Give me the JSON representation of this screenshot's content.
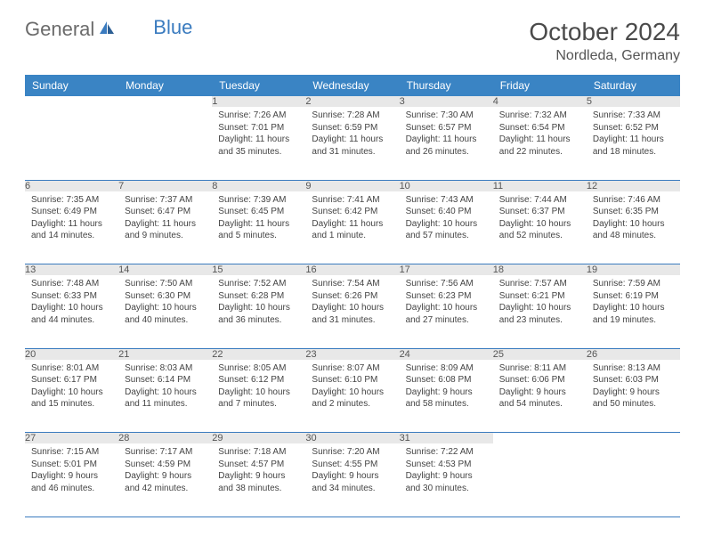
{
  "logo": {
    "text_general": "General",
    "text_blue": "Blue"
  },
  "title": "October 2024",
  "location": "Nordleda, Germany",
  "colors": {
    "header_bg": "#3a84c4",
    "header_text": "#ffffff",
    "daynum_bg": "#e8e8e8",
    "border": "#3a7bbf",
    "logo_gray": "#6b6b6b",
    "logo_blue": "#3a7bbf"
  },
  "day_headers": [
    "Sunday",
    "Monday",
    "Tuesday",
    "Wednesday",
    "Thursday",
    "Friday",
    "Saturday"
  ],
  "weeks": [
    [
      {
        "n": "",
        "sunrise": "",
        "sunset": "",
        "daylight": ""
      },
      {
        "n": "",
        "sunrise": "",
        "sunset": "",
        "daylight": ""
      },
      {
        "n": "1",
        "sunrise": "Sunrise: 7:26 AM",
        "sunset": "Sunset: 7:01 PM",
        "daylight": "Daylight: 11 hours and 35 minutes."
      },
      {
        "n": "2",
        "sunrise": "Sunrise: 7:28 AM",
        "sunset": "Sunset: 6:59 PM",
        "daylight": "Daylight: 11 hours and 31 minutes."
      },
      {
        "n": "3",
        "sunrise": "Sunrise: 7:30 AM",
        "sunset": "Sunset: 6:57 PM",
        "daylight": "Daylight: 11 hours and 26 minutes."
      },
      {
        "n": "4",
        "sunrise": "Sunrise: 7:32 AM",
        "sunset": "Sunset: 6:54 PM",
        "daylight": "Daylight: 11 hours and 22 minutes."
      },
      {
        "n": "5",
        "sunrise": "Sunrise: 7:33 AM",
        "sunset": "Sunset: 6:52 PM",
        "daylight": "Daylight: 11 hours and 18 minutes."
      }
    ],
    [
      {
        "n": "6",
        "sunrise": "Sunrise: 7:35 AM",
        "sunset": "Sunset: 6:49 PM",
        "daylight": "Daylight: 11 hours and 14 minutes."
      },
      {
        "n": "7",
        "sunrise": "Sunrise: 7:37 AM",
        "sunset": "Sunset: 6:47 PM",
        "daylight": "Daylight: 11 hours and 9 minutes."
      },
      {
        "n": "8",
        "sunrise": "Sunrise: 7:39 AM",
        "sunset": "Sunset: 6:45 PM",
        "daylight": "Daylight: 11 hours and 5 minutes."
      },
      {
        "n": "9",
        "sunrise": "Sunrise: 7:41 AM",
        "sunset": "Sunset: 6:42 PM",
        "daylight": "Daylight: 11 hours and 1 minute."
      },
      {
        "n": "10",
        "sunrise": "Sunrise: 7:43 AM",
        "sunset": "Sunset: 6:40 PM",
        "daylight": "Daylight: 10 hours and 57 minutes."
      },
      {
        "n": "11",
        "sunrise": "Sunrise: 7:44 AM",
        "sunset": "Sunset: 6:37 PM",
        "daylight": "Daylight: 10 hours and 52 minutes."
      },
      {
        "n": "12",
        "sunrise": "Sunrise: 7:46 AM",
        "sunset": "Sunset: 6:35 PM",
        "daylight": "Daylight: 10 hours and 48 minutes."
      }
    ],
    [
      {
        "n": "13",
        "sunrise": "Sunrise: 7:48 AM",
        "sunset": "Sunset: 6:33 PM",
        "daylight": "Daylight: 10 hours and 44 minutes."
      },
      {
        "n": "14",
        "sunrise": "Sunrise: 7:50 AM",
        "sunset": "Sunset: 6:30 PM",
        "daylight": "Daylight: 10 hours and 40 minutes."
      },
      {
        "n": "15",
        "sunrise": "Sunrise: 7:52 AM",
        "sunset": "Sunset: 6:28 PM",
        "daylight": "Daylight: 10 hours and 36 minutes."
      },
      {
        "n": "16",
        "sunrise": "Sunrise: 7:54 AM",
        "sunset": "Sunset: 6:26 PM",
        "daylight": "Daylight: 10 hours and 31 minutes."
      },
      {
        "n": "17",
        "sunrise": "Sunrise: 7:56 AM",
        "sunset": "Sunset: 6:23 PM",
        "daylight": "Daylight: 10 hours and 27 minutes."
      },
      {
        "n": "18",
        "sunrise": "Sunrise: 7:57 AM",
        "sunset": "Sunset: 6:21 PM",
        "daylight": "Daylight: 10 hours and 23 minutes."
      },
      {
        "n": "19",
        "sunrise": "Sunrise: 7:59 AM",
        "sunset": "Sunset: 6:19 PM",
        "daylight": "Daylight: 10 hours and 19 minutes."
      }
    ],
    [
      {
        "n": "20",
        "sunrise": "Sunrise: 8:01 AM",
        "sunset": "Sunset: 6:17 PM",
        "daylight": "Daylight: 10 hours and 15 minutes."
      },
      {
        "n": "21",
        "sunrise": "Sunrise: 8:03 AM",
        "sunset": "Sunset: 6:14 PM",
        "daylight": "Daylight: 10 hours and 11 minutes."
      },
      {
        "n": "22",
        "sunrise": "Sunrise: 8:05 AM",
        "sunset": "Sunset: 6:12 PM",
        "daylight": "Daylight: 10 hours and 7 minutes."
      },
      {
        "n": "23",
        "sunrise": "Sunrise: 8:07 AM",
        "sunset": "Sunset: 6:10 PM",
        "daylight": "Daylight: 10 hours and 2 minutes."
      },
      {
        "n": "24",
        "sunrise": "Sunrise: 8:09 AM",
        "sunset": "Sunset: 6:08 PM",
        "daylight": "Daylight: 9 hours and 58 minutes."
      },
      {
        "n": "25",
        "sunrise": "Sunrise: 8:11 AM",
        "sunset": "Sunset: 6:06 PM",
        "daylight": "Daylight: 9 hours and 54 minutes."
      },
      {
        "n": "26",
        "sunrise": "Sunrise: 8:13 AM",
        "sunset": "Sunset: 6:03 PM",
        "daylight": "Daylight: 9 hours and 50 minutes."
      }
    ],
    [
      {
        "n": "27",
        "sunrise": "Sunrise: 7:15 AM",
        "sunset": "Sunset: 5:01 PM",
        "daylight": "Daylight: 9 hours and 46 minutes."
      },
      {
        "n": "28",
        "sunrise": "Sunrise: 7:17 AM",
        "sunset": "Sunset: 4:59 PM",
        "daylight": "Daylight: 9 hours and 42 minutes."
      },
      {
        "n": "29",
        "sunrise": "Sunrise: 7:18 AM",
        "sunset": "Sunset: 4:57 PM",
        "daylight": "Daylight: 9 hours and 38 minutes."
      },
      {
        "n": "30",
        "sunrise": "Sunrise: 7:20 AM",
        "sunset": "Sunset: 4:55 PM",
        "daylight": "Daylight: 9 hours and 34 minutes."
      },
      {
        "n": "31",
        "sunrise": "Sunrise: 7:22 AM",
        "sunset": "Sunset: 4:53 PM",
        "daylight": "Daylight: 9 hours and 30 minutes."
      },
      {
        "n": "",
        "sunrise": "",
        "sunset": "",
        "daylight": ""
      },
      {
        "n": "",
        "sunrise": "",
        "sunset": "",
        "daylight": ""
      }
    ]
  ]
}
